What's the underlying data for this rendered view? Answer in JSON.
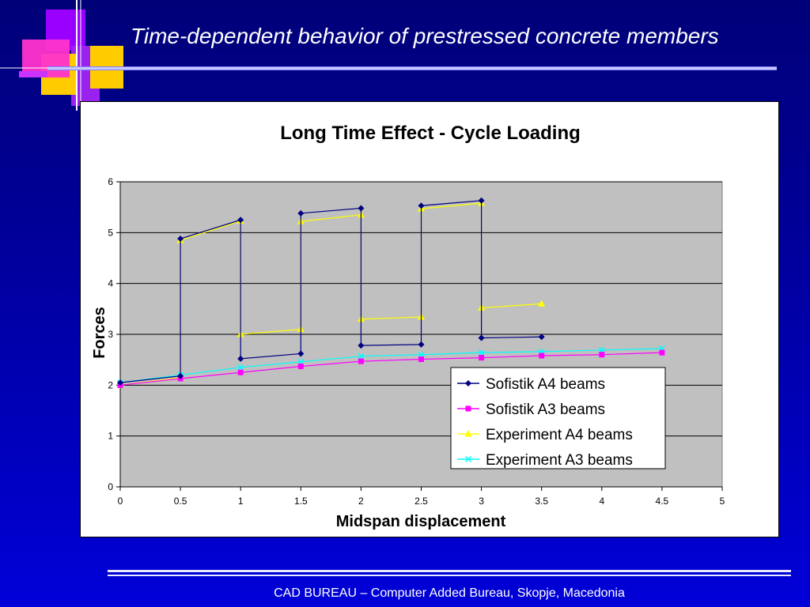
{
  "slide": {
    "title": "Time-dependent behavior of prestressed concrete members",
    "footer": "CAD BUREAU – Computer Added Bureau, Skopje, Macedonia"
  },
  "colors": {
    "background": "#00009a",
    "plot_area": "#c0c0c0",
    "logo_magenta": "#ff33cc",
    "logo_purple": "#8a2be2",
    "logo_yellow": "#ffcc00"
  },
  "chart_data": {
    "type": "line",
    "title": "Long Time Effect - Cycle Loading",
    "xlabel": "Midspan displacement",
    "ylabel": "Forces",
    "xlim": [
      0,
      5
    ],
    "ylim": [
      0,
      6
    ],
    "x_ticks": [
      "0",
      "0.5",
      "1",
      "1.5",
      "2",
      "2.5",
      "3",
      "3.5",
      "4",
      "4.5",
      "5"
    ],
    "y_ticks": [
      "0",
      "1",
      "2",
      "3",
      "4",
      "5",
      "6"
    ],
    "grid": "horizontal",
    "legend_position": "bottom-right",
    "series": [
      {
        "name": "Sofistik A4 beams",
        "color": "#000080",
        "marker": "diamond",
        "points": [
          [
            0,
            2.05
          ],
          [
            0.5,
            2.18
          ],
          [
            0.5,
            4.88
          ],
          [
            1,
            5.25
          ],
          [
            1,
            2.52
          ],
          [
            1.5,
            2.62
          ],
          [
            1.5,
            5.38
          ],
          [
            2,
            5.48
          ],
          [
            2,
            2.78
          ],
          [
            2.5,
            2.8
          ],
          [
            2.5,
            5.53
          ],
          [
            3,
            5.63
          ],
          [
            3,
            2.93
          ],
          [
            3.5,
            2.95
          ]
        ]
      },
      {
        "name": "Sofistik A3 beams",
        "color": "#ff00ff",
        "marker": "square",
        "points": [
          [
            0,
            2.0
          ],
          [
            0.5,
            2.13
          ],
          [
            1,
            2.25
          ],
          [
            1.5,
            2.37
          ],
          [
            2,
            2.47
          ],
          [
            2.5,
            2.51
          ],
          [
            3,
            2.54
          ],
          [
            3.5,
            2.58
          ],
          [
            4,
            2.6
          ],
          [
            4.5,
            2.64
          ]
        ]
      },
      {
        "name": "Experiment A4 beams",
        "color": "#ffff00",
        "marker": "triangle",
        "points": [
          [
            0,
            2.0
          ],
          [
            0.5,
            2.15
          ],
          [
            0.5,
            4.85
          ],
          [
            1,
            5.23
          ],
          [
            1,
            3.0
          ],
          [
            1.5,
            3.1
          ],
          [
            1.5,
            5.22
          ],
          [
            2,
            5.35
          ],
          [
            2,
            3.3
          ],
          [
            2.5,
            3.34
          ],
          [
            2.5,
            5.47
          ],
          [
            3,
            5.58
          ],
          [
            3,
            3.52
          ],
          [
            3.5,
            3.6
          ]
        ]
      },
      {
        "name": "Experiment A3 beams",
        "color": "#00ffff",
        "marker": "x",
        "points": [
          [
            0,
            2.05
          ],
          [
            0.5,
            2.2
          ],
          [
            1,
            2.35
          ],
          [
            1.5,
            2.46
          ],
          [
            2,
            2.57
          ],
          [
            2.5,
            2.6
          ],
          [
            3,
            2.64
          ],
          [
            3.5,
            2.66
          ],
          [
            4,
            2.69
          ],
          [
            4.5,
            2.72
          ]
        ]
      }
    ]
  }
}
